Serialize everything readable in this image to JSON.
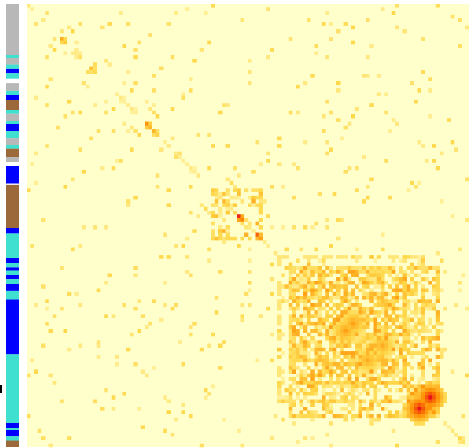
{
  "chart_data": {
    "type": "heatmap",
    "title": "",
    "xlabel": "",
    "ylabel": "",
    "colorscale": {
      "low": "#ffffcc",
      "mid": "#ffd84a",
      "high": "#ff8a00",
      "peak": "#e8141a"
    },
    "annotation_bar": {
      "palette": {
        "grey": "#b8b8b8",
        "turquoise": "#40e0d0",
        "blue": "#0000ff",
        "brown": "#9c6a3a",
        "white": "#ffffff"
      },
      "segments": [
        {
          "start": 0.0,
          "end": 0.116,
          "color": "grey"
        },
        {
          "start": 0.116,
          "end": 0.122,
          "color": "turquoise"
        },
        {
          "start": 0.122,
          "end": 0.137,
          "color": "grey"
        },
        {
          "start": 0.137,
          "end": 0.147,
          "color": "turquoise"
        },
        {
          "start": 0.147,
          "end": 0.157,
          "color": "blue"
        },
        {
          "start": 0.157,
          "end": 0.169,
          "color": "turquoise"
        },
        {
          "start": 0.169,
          "end": 0.179,
          "color": "white"
        },
        {
          "start": 0.179,
          "end": 0.196,
          "color": "grey"
        },
        {
          "start": 0.196,
          "end": 0.206,
          "color": "turquoise"
        },
        {
          "start": 0.206,
          "end": 0.217,
          "color": "blue"
        },
        {
          "start": 0.217,
          "end": 0.24,
          "color": "brown"
        },
        {
          "start": 0.24,
          "end": 0.248,
          "color": "turquoise"
        },
        {
          "start": 0.248,
          "end": 0.265,
          "color": "grey"
        },
        {
          "start": 0.265,
          "end": 0.272,
          "color": "turquoise"
        },
        {
          "start": 0.272,
          "end": 0.288,
          "color": "blue"
        },
        {
          "start": 0.288,
          "end": 0.304,
          "color": "turquoise"
        },
        {
          "start": 0.304,
          "end": 0.318,
          "color": "grey"
        },
        {
          "start": 0.318,
          "end": 0.327,
          "color": "turquoise"
        },
        {
          "start": 0.327,
          "end": 0.345,
          "color": "brown"
        },
        {
          "start": 0.345,
          "end": 0.357,
          "color": "grey"
        },
        {
          "start": 0.357,
          "end": 0.367,
          "color": "white"
        },
        {
          "start": 0.367,
          "end": 0.406,
          "color": "blue"
        },
        {
          "start": 0.406,
          "end": 0.408,
          "color": "white"
        },
        {
          "start": 0.408,
          "end": 0.505,
          "color": "brown"
        },
        {
          "start": 0.505,
          "end": 0.518,
          "color": "blue"
        },
        {
          "start": 0.518,
          "end": 0.574,
          "color": "turquoise"
        },
        {
          "start": 0.574,
          "end": 0.584,
          "color": "blue"
        },
        {
          "start": 0.584,
          "end": 0.594,
          "color": "turquoise"
        },
        {
          "start": 0.594,
          "end": 0.602,
          "color": "blue"
        },
        {
          "start": 0.602,
          "end": 0.612,
          "color": "turquoise"
        },
        {
          "start": 0.612,
          "end": 0.622,
          "color": "blue"
        },
        {
          "start": 0.622,
          "end": 0.632,
          "color": "turquoise"
        },
        {
          "start": 0.632,
          "end": 0.647,
          "color": "blue"
        },
        {
          "start": 0.647,
          "end": 0.667,
          "color": "turquoise"
        },
        {
          "start": 0.667,
          "end": 0.79,
          "color": "blue"
        },
        {
          "start": 0.79,
          "end": 0.945,
          "color": "turquoise"
        },
        {
          "start": 0.945,
          "end": 0.956,
          "color": "blue"
        },
        {
          "start": 0.956,
          "end": 0.962,
          "color": "turquoise"
        },
        {
          "start": 0.962,
          "end": 0.975,
          "color": "blue"
        },
        {
          "start": 0.975,
          "end": 0.985,
          "color": "turquoise"
        },
        {
          "start": 0.985,
          "end": 1.0,
          "color": "brown"
        }
      ]
    },
    "diagonal_spots": [
      {
        "pos": 0.079,
        "value": 0.55
      },
      {
        "pos": 0.144,
        "value": 0.45
      },
      {
        "pos": 0.206,
        "value": 0.2
      },
      {
        "pos": 0.232,
        "value": 0.2
      },
      {
        "pos": 0.268,
        "value": 0.65
      },
      {
        "pos": 0.289,
        "value": 0.5
      },
      {
        "pos": 0.336,
        "value": 0.2
      },
      {
        "pos": 0.371,
        "value": 0.2
      },
      {
        "pos": 0.432,
        "value": 0.3
      },
      {
        "pos": 0.449,
        "value": 0.5
      },
      {
        "pos": 0.475,
        "value": 0.95
      },
      {
        "pos": 0.518,
        "value": 0.8
      },
      {
        "pos": 0.652,
        "value": 0.35
      },
      {
        "pos": 0.708,
        "value": 0.35
      },
      {
        "pos": 0.744,
        "value": 0.35
      },
      {
        "pos": 0.777,
        "value": 0.35
      },
      {
        "pos": 0.979,
        "value": 0.35
      }
    ],
    "blocks": [
      {
        "start": 0.418,
        "end": 0.535,
        "density": 0.35,
        "value": 0.55
      },
      {
        "start": 0.57,
        "end": 0.9,
        "density": 0.2,
        "value": 0.45
      },
      {
        "start": 0.59,
        "end": 0.93,
        "density": 0.4,
        "value": 0.55
      },
      {
        "start": 0.6,
        "end": 0.86,
        "density": 0.35,
        "value": 0.6
      },
      {
        "start": 0.86,
        "end": 0.935,
        "density": 0.55,
        "value": 0.65
      }
    ],
    "hotspots": [
      {
        "x": 0.885,
        "y": 0.905,
        "value": 1.0
      },
      {
        "x": 0.73,
        "y": 0.72,
        "value": 0.6
      },
      {
        "x": 0.8,
        "y": 0.77,
        "value": 0.55
      }
    ]
  }
}
